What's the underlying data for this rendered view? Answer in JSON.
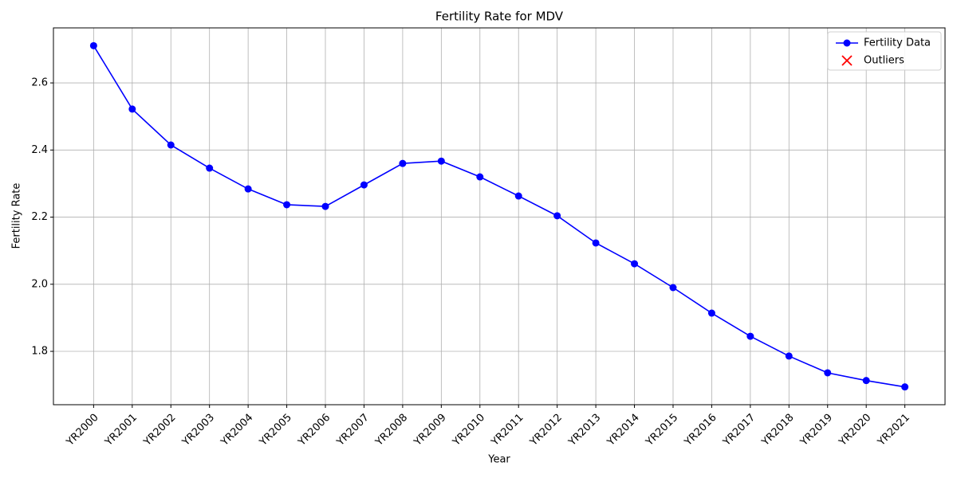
{
  "chart_data": {
    "type": "line",
    "title": "Fertility Rate for MDV",
    "xlabel": "Year",
    "ylabel": "Fertility Rate",
    "categories": [
      "YR2000",
      "YR2001",
      "YR2002",
      "YR2003",
      "YR2004",
      "YR2005",
      "YR2006",
      "YR2007",
      "YR2008",
      "YR2009",
      "YR2010",
      "YR2011",
      "YR2012",
      "YR2013",
      "YR2014",
      "YR2015",
      "YR2016",
      "YR2017",
      "YR2018",
      "YR2019",
      "YR2020",
      "YR2021"
    ],
    "series": [
      {
        "name": "Fertility Data",
        "color": "#0000ff",
        "marker": "o",
        "values": [
          2.711,
          2.522,
          2.415,
          2.346,
          2.284,
          2.237,
          2.232,
          2.296,
          2.36,
          2.367,
          2.32,
          2.263,
          2.204,
          2.123,
          2.061,
          1.99,
          1.914,
          1.845,
          1.786,
          1.736,
          1.713,
          1.694
        ]
      },
      {
        "name": "Outliers",
        "color": "#ff0000",
        "marker": "x",
        "values": [
          null,
          null,
          null,
          null,
          null,
          null,
          null,
          null,
          null,
          null,
          null,
          null,
          null,
          null,
          null,
          null,
          null,
          null,
          null,
          null,
          null,
          null
        ]
      }
    ],
    "ylim": [
      1.641,
      2.764
    ],
    "yticks": [
      {
        "value": 1.8,
        "label": "1.8"
      },
      {
        "value": 2.0,
        "label": "2.0"
      },
      {
        "value": 2.2,
        "label": "2.2"
      },
      {
        "value": 2.4,
        "label": "2.4"
      },
      {
        "value": 2.6,
        "label": "2.6"
      }
    ],
    "grid": true,
    "legend": "upper right"
  }
}
